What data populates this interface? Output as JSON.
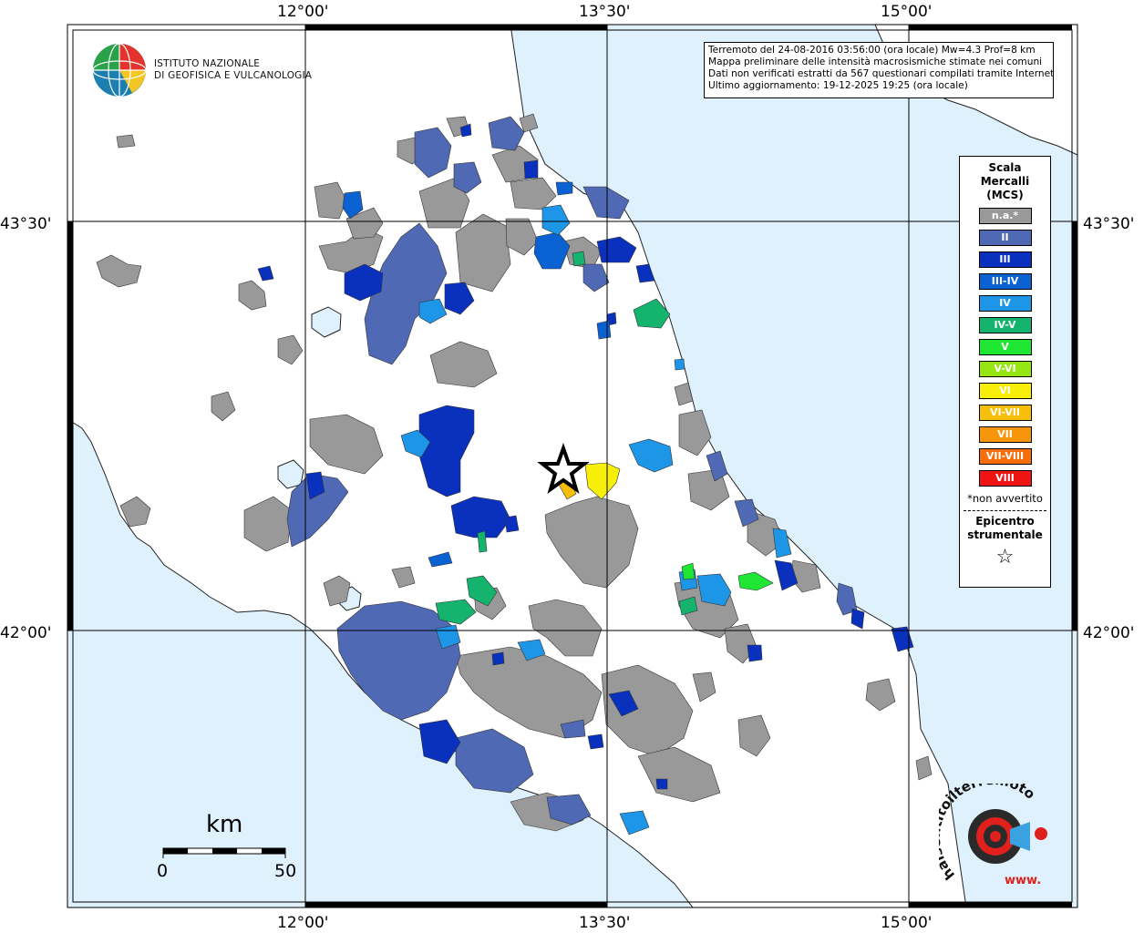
{
  "info": {
    "line1": "Terremoto del 24-08-2016 03:56:00 (ora locale) Mw=4.3 Prof=8 km",
    "line2": "Mappa preliminare delle intensità macrosismiche stimate nei comuni",
    "line3": "Dati non verificati estratti da 567 questionari compilati tramite Internet.",
    "line4": "Ultimo aggiornamento: 19-12-2025 19:25 (ora locale)"
  },
  "institute": {
    "name_line1": "ISTITUTO NAZIONALE",
    "name_line2": "DI GEOFISICA E VULCANOLOGIA"
  },
  "axes": {
    "lon_labels": [
      "12°00'",
      "13°30'",
      "15°00'"
    ],
    "lat_labels": [
      "43°30'",
      "42°00'"
    ]
  },
  "legend": {
    "title": "Scala Mercalli (MCS)",
    "title_line1": "Scala",
    "title_line2": "Mercalli",
    "title_line3": "(MCS)",
    "items": [
      {
        "label": "n.a.*",
        "color": "#999999"
      },
      {
        "label": "II",
        "color": "#4f69b5"
      },
      {
        "label": "III",
        "color": "#0a31bd"
      },
      {
        "label": "III-IV",
        "color": "#0a62d2"
      },
      {
        "label": "IV",
        "color": "#1e96e8"
      },
      {
        "label": "IV-V",
        "color": "#14b46e"
      },
      {
        "label": "V",
        "color": "#1ee632"
      },
      {
        "label": "V-VI",
        "color": "#96e614"
      },
      {
        "label": "VI",
        "color": "#f7ee0a"
      },
      {
        "label": "VI-VII",
        "color": "#f7be0a"
      },
      {
        "label": "VII",
        "color": "#f7960a"
      },
      {
        "label": "VII-VIII",
        "color": "#f76e0a"
      },
      {
        "label": "VIII",
        "color": "#ee1414"
      }
    ],
    "note": "*non avvertito",
    "epicenter_line1": "Epicentro",
    "epicenter_line2": "strumentale"
  },
  "scale_bar": {
    "unit": "km",
    "min": "0",
    "max": "50"
  },
  "watermark": {
    "text": "haisentitoilterremoto.it",
    "prefix": "www."
  },
  "colors": {
    "sea": "#dff1fc",
    "land": "#ffffff",
    "epicenter_star": "#000000"
  }
}
